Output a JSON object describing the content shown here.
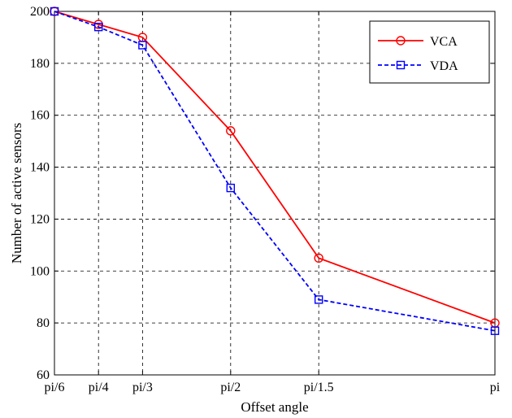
{
  "chart_data": {
    "type": "line",
    "title": "",
    "xlabel": "Offset angle",
    "ylabel": "Number of active sensors",
    "categories": [
      "pi/6",
      "pi/4",
      "pi/3",
      "pi/2",
      "pi/1.5",
      "pi"
    ],
    "x": [
      0.5236,
      0.7854,
      1.0472,
      1.5708,
      2.0944,
      3.1416
    ],
    "xlim": [
      0.5236,
      3.1416
    ],
    "ylim": [
      60,
      200
    ],
    "yticks": [
      60,
      80,
      100,
      120,
      140,
      160,
      180,
      200
    ],
    "grid": true,
    "legend_position": "top-right",
    "series": [
      {
        "name": "VCA",
        "color": "#ff0000",
        "line_style": "solid",
        "marker": "circle",
        "values": [
          200,
          195,
          190,
          154,
          105,
          80
        ]
      },
      {
        "name": "VDA",
        "color": "#0000ff",
        "line_style": "dashed",
        "marker": "square",
        "values": [
          200,
          194,
          187,
          132,
          89,
          77
        ]
      }
    ]
  }
}
